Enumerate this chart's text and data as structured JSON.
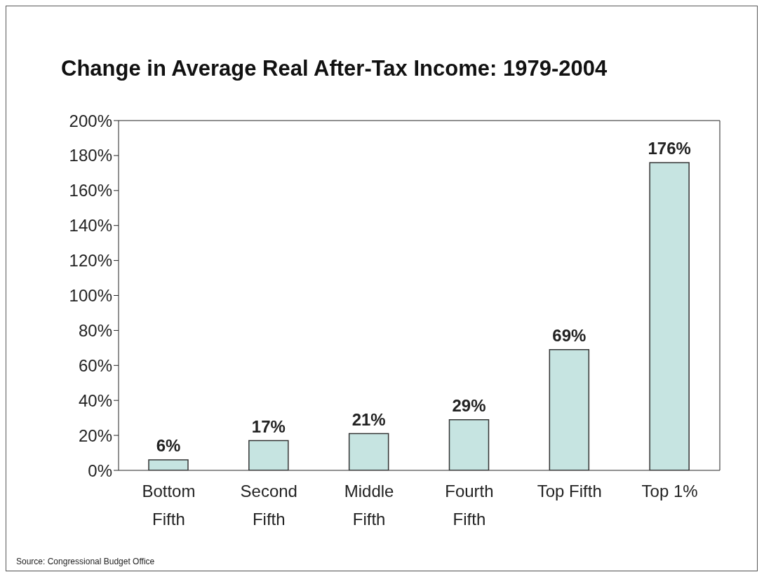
{
  "chart_data": {
    "type": "bar",
    "title": "Change in Average Real After-Tax Income: 1979-2004",
    "categories": [
      "Bottom Fifth",
      "Second Fifth",
      "Middle Fifth",
      "Fourth Fifth",
      "Top Fifth",
      "Top 1%"
    ],
    "values": [
      6,
      17,
      21,
      29,
      69,
      176
    ],
    "value_labels": [
      "6%",
      "17%",
      "21%",
      "29%",
      "69%",
      "176%"
    ],
    "color": "#c6e4e1",
    "ylim": [
      0,
      200
    ],
    "yticks": [
      {
        "value": 0,
        "label": "0%"
      },
      {
        "value": 20,
        "label": "20%"
      },
      {
        "value": 40,
        "label": "40%"
      },
      {
        "value": 60,
        "label": "60%"
      },
      {
        "value": 80,
        "label": "80%"
      },
      {
        "value": 100,
        "label": "100%"
      },
      {
        "value": 120,
        "label": "120%"
      },
      {
        "value": 140,
        "label": "140%"
      },
      {
        "value": 160,
        "label": "160%"
      },
      {
        "value": 180,
        "label": "180%"
      },
      {
        "value": 200,
        "label": "200%"
      }
    ],
    "grid": false,
    "legend": false,
    "annotations": [
      "Source: Congressional Budget Office"
    ]
  }
}
